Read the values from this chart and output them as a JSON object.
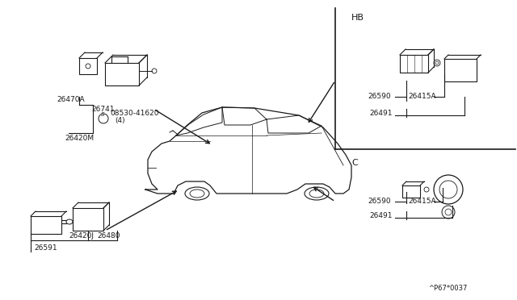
{
  "bg_color": "#ffffff",
  "line_color": "#1a1a1a",
  "text_color": "#1a1a1a",
  "diagram_number": "^P67*0037",
  "hb_label": "HB",
  "c_label": "C",
  "ul_label_main": "26420M",
  "ul_label_part1": "26470A",
  "ul_label_part2": "26741",
  "ul_label_screw": "08530-41620",
  "ul_label_qty": "(4)",
  "ll_label_part1": "26420J",
  "ll_label_part2": "26480",
  "ll_label_part3": "26591",
  "hb_label_main": "26590",
  "hb_label_part1": "26415A",
  "hb_label_part2": "26491",
  "c_label_main": "26590",
  "c_label_part1": "26415A",
  "c_label_part2": "26491"
}
